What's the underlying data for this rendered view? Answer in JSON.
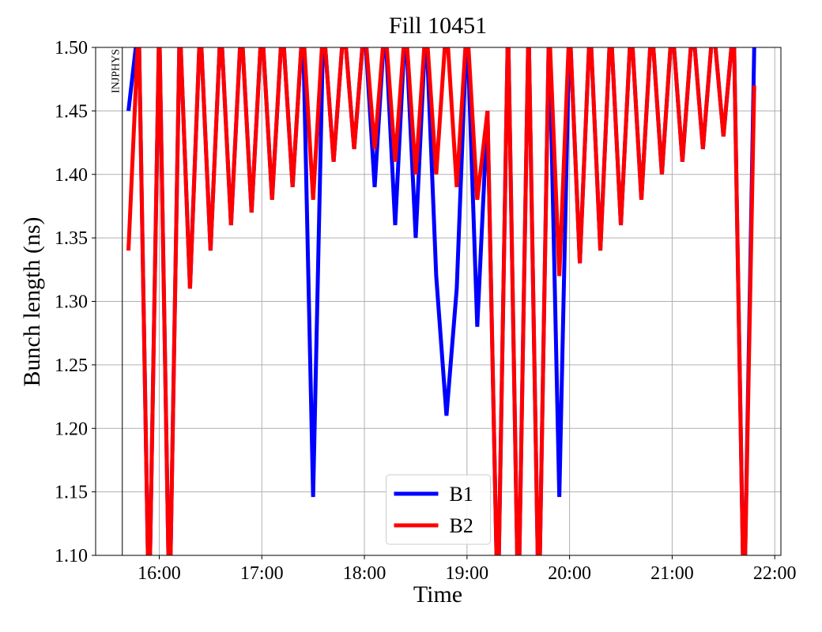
{
  "chart_data": {
    "type": "line",
    "title": "Fill 10451",
    "x_label": "Time",
    "y_label": "Bunch length (ns)",
    "xlim": [
      15.38,
      22.06
    ],
    "ylim": [
      1.1,
      1.5
    ],
    "xticks": [
      {
        "value": 16,
        "label": "16:00"
      },
      {
        "value": 17,
        "label": "17:00"
      },
      {
        "value": 18,
        "label": "18:00"
      },
      {
        "value": 19,
        "label": "19:00"
      },
      {
        "value": 20,
        "label": "20:00"
      },
      {
        "value": 21,
        "label": "21:00"
      },
      {
        "value": 22,
        "label": "22:00"
      }
    ],
    "yticks": [
      {
        "value": 1.1,
        "label": "1.10"
      },
      1.15,
      {
        "value": 1.2,
        "label": "1.20"
      },
      1.25,
      {
        "value": 1.3,
        "label": "1.30"
      },
      1.35,
      {
        "value": 1.4,
        "label": "1.40"
      },
      1.45,
      {
        "value": 1.5,
        "label": "1.50"
      }
    ],
    "grid": true,
    "legend": "lower center",
    "annotations": [
      {
        "text": "INJPHYS",
        "x": 15.64
      }
    ],
    "x": [
      15.7,
      15.8,
      15.9,
      16.0,
      16.1,
      16.2,
      16.3,
      16.4,
      16.5,
      16.6,
      16.7,
      16.8,
      16.9,
      17.0,
      17.1,
      17.2,
      17.3,
      17.4,
      17.5,
      17.6,
      17.7,
      17.8,
      17.9,
      18.0,
      18.1,
      18.2,
      18.3,
      18.4,
      18.5,
      18.6,
      18.7,
      18.8,
      18.9,
      19.0,
      19.1,
      19.2,
      19.3,
      19.4,
      19.5,
      19.6,
      19.7,
      19.8,
      19.9,
      20.0,
      20.1,
      20.2,
      20.3,
      20.4,
      20.5,
      20.6,
      20.7,
      20.8,
      20.9,
      21.0,
      21.1,
      21.2,
      21.3,
      21.4,
      21.5,
      21.6,
      21.7,
      21.8
    ],
    "series": [
      {
        "name": "B1",
        "color": "#0000ff",
        "values": [
          1.45,
          1.52,
          1.05,
          1.52,
          1.05,
          1.52,
          1.31,
          1.52,
          1.34,
          1.52,
          1.36,
          1.52,
          1.37,
          1.52,
          1.38,
          1.52,
          1.39,
          1.52,
          1.146,
          1.52,
          1.41,
          1.52,
          1.42,
          1.52,
          1.39,
          1.52,
          1.36,
          1.52,
          1.35,
          1.52,
          1.32,
          1.21,
          1.31,
          1.52,
          1.28,
          1.45,
          1.05,
          1.52,
          1.05,
          1.52,
          1.05,
          1.52,
          1.146,
          1.52,
          1.33,
          1.52,
          1.34,
          1.52,
          1.36,
          1.52,
          1.38,
          1.52,
          1.4,
          1.52,
          1.41,
          1.52,
          1.42,
          1.52,
          1.43,
          1.52,
          1.05,
          1.5
        ]
      },
      {
        "name": "B2",
        "color": "#ff0000",
        "values": [
          1.34,
          1.52,
          1.05,
          1.52,
          1.05,
          1.52,
          1.31,
          1.52,
          1.34,
          1.52,
          1.36,
          1.52,
          1.37,
          1.52,
          1.38,
          1.52,
          1.39,
          1.52,
          1.38,
          1.52,
          1.41,
          1.52,
          1.42,
          1.52,
          1.42,
          1.52,
          1.41,
          1.52,
          1.4,
          1.52,
          1.4,
          1.52,
          1.39,
          1.52,
          1.38,
          1.45,
          1.05,
          1.52,
          1.05,
          1.52,
          1.05,
          1.52,
          1.32,
          1.52,
          1.33,
          1.52,
          1.34,
          1.52,
          1.36,
          1.52,
          1.38,
          1.52,
          1.4,
          1.52,
          1.41,
          1.52,
          1.42,
          1.52,
          1.43,
          1.52,
          1.05,
          1.47
        ]
      }
    ]
  }
}
